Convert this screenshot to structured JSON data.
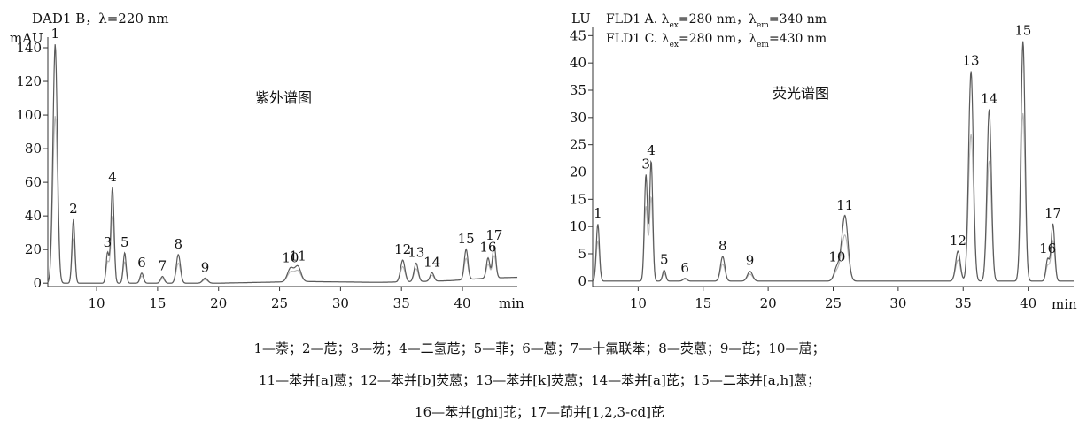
{
  "chart_data": [
    {
      "type": "line",
      "header": "DAD1 B，λ=220 nm",
      "ylabel": "mAU",
      "xlabel": "min",
      "annotation": "紫外谱图",
      "xlim": [
        6,
        44.5
      ],
      "ylim": [
        -2,
        150
      ],
      "xticks": [
        10,
        15,
        20,
        25,
        30,
        35,
        40
      ],
      "yticks": [
        0,
        20,
        40,
        60,
        80,
        100,
        120,
        140
      ],
      "grid": false,
      "baseline": [
        [
          6,
          0
        ],
        [
          20,
          0
        ],
        [
          27,
          1
        ],
        [
          33,
          0.5
        ],
        [
          35.5,
          0.8
        ],
        [
          39,
          1.5
        ],
        [
          42,
          3
        ],
        [
          44.5,
          3.5
        ]
      ],
      "peaks": [
        {
          "label": "1",
          "x": 6.6,
          "y": 142,
          "width": 0.18
        },
        {
          "label": "2",
          "x": 8.1,
          "y": 38,
          "width": 0.12
        },
        {
          "label": "3",
          "x": 10.9,
          "y": 18,
          "width": 0.12
        },
        {
          "label": "4",
          "x": 11.3,
          "y": 57,
          "width": 0.13
        },
        {
          "label": "5",
          "x": 12.3,
          "y": 18,
          "width": 0.12
        },
        {
          "label": "6",
          "x": 13.7,
          "y": 6,
          "width": 0.14
        },
        {
          "label": "7",
          "x": 15.4,
          "y": 4,
          "width": 0.15
        },
        {
          "label": "8",
          "x": 16.7,
          "y": 17,
          "width": 0.17
        },
        {
          "label": "9",
          "x": 18.9,
          "y": 3,
          "width": 0.2
        },
        {
          "label": "10",
          "x": 25.9,
          "y": 8,
          "width": 0.25
        },
        {
          "label": "11",
          "x": 26.5,
          "y": 9,
          "width": 0.25
        },
        {
          "label": "12",
          "x": 35.1,
          "y": 13,
          "width": 0.18
        },
        {
          "label": "13",
          "x": 36.2,
          "y": 11,
          "width": 0.17
        },
        {
          "label": "14",
          "x": 37.5,
          "y": 5,
          "width": 0.16
        },
        {
          "label": "15",
          "x": 40.3,
          "y": 18,
          "width": 0.15
        },
        {
          "label": "16",
          "x": 42.1,
          "y": 12,
          "width": 0.14
        },
        {
          "label": "17",
          "x": 42.6,
          "y": 19,
          "width": 0.14
        }
      ]
    },
    {
      "type": "line",
      "header": [
        "FLD1 A. λ_ex=280 nm，λ_em=340 nm",
        "FLD1 C. λ_ex=280 nm，λ_em=430 nm"
      ],
      "ylabel": "LU",
      "xlabel": "min",
      "annotation": "荧光谱图",
      "xlim": [
        6.5,
        43.5
      ],
      "ylim": [
        -1,
        47
      ],
      "xticks": [
        10,
        15,
        20,
        25,
        30,
        35,
        40
      ],
      "yticks": [
        0,
        5,
        10,
        15,
        20,
        25,
        30,
        35,
        40,
        45
      ],
      "grid": false,
      "peaks": [
        {
          "label": "1",
          "x": 6.9,
          "y": 10.5,
          "width": 0.12
        },
        {
          "label": "3",
          "x": 10.6,
          "y": 19.5,
          "width": 0.12
        },
        {
          "label": "4",
          "x": 11.0,
          "y": 22,
          "width": 0.12
        },
        {
          "label": "5",
          "x": 12.0,
          "y": 2,
          "width": 0.12
        },
        {
          "label": "6",
          "x": 13.6,
          "y": 0.5,
          "width": 0.15
        },
        {
          "label": "8",
          "x": 16.5,
          "y": 4.5,
          "width": 0.17
        },
        {
          "label": "9",
          "x": 18.6,
          "y": 1.8,
          "width": 0.2
        },
        {
          "label": "10",
          "x": 25.3,
          "y": 2.5,
          "width": 0.22
        },
        {
          "label": "11",
          "x": 25.9,
          "y": 12,
          "width": 0.24
        },
        {
          "label": "12",
          "x": 34.6,
          "y": 5.5,
          "width": 0.18
        },
        {
          "label": "13",
          "x": 35.6,
          "y": 38.5,
          "width": 0.18
        },
        {
          "label": "14",
          "x": 37.0,
          "y": 31.5,
          "width": 0.17
        },
        {
          "label": "15",
          "x": 39.6,
          "y": 44,
          "width": 0.16
        },
        {
          "label": "16",
          "x": 41.5,
          "y": 4,
          "width": 0.13
        },
        {
          "label": "17",
          "x": 41.9,
          "y": 10.5,
          "width": 0.14
        }
      ]
    }
  ],
  "legend_lines": [
    "1—萘；2—苊；3—芴；4—二氢苊；5—菲；6—蒽；7—十氟联苯；8—荧蒽；9—芘；10—䓛；",
    "11—苯并[a]蒽；12—苯并[b]荧蒽；13—苯并[k]荧蒽；14—苯并[a]芘；15—二苯并[a,h]蒽；",
    "16—苯并[ghi]苝；17—茚并[1,2,3-cd]芘"
  ]
}
